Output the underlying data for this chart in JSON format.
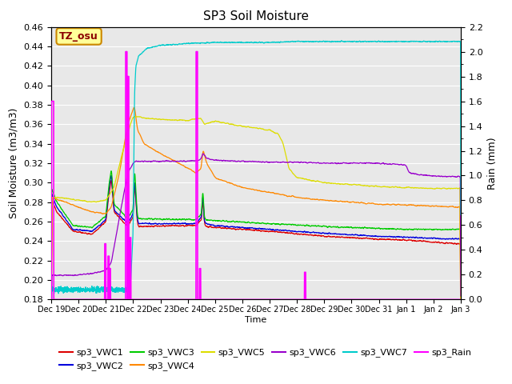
{
  "title": "SP3 Soil Moisture",
  "ylabel_left": "Soil Moisture (m3/m3)",
  "ylabel_right": "Rain (mm)",
  "xlabel": "Time",
  "ylim_left": [
    0.18,
    0.46
  ],
  "ylim_right": [
    0.0,
    2.2
  ],
  "bg_color": "#e8e8e8",
  "colors": {
    "VWC1": "#dd0000",
    "VWC2": "#0000dd",
    "VWC3": "#00cc00",
    "VWC4": "#ff8800",
    "VWC5": "#dddd00",
    "VWC6": "#9900cc",
    "VWC7": "#00cccc",
    "Rain": "#ff00ff"
  },
  "annotation_text": "TZ_osu",
  "annotation_bg": "#ffff99",
  "annotation_border": "#cc8800",
  "x_tick_labels": [
    "Dec 19",
    "Dec 20",
    "Dec 21",
    "Dec 22",
    "Dec 23",
    "Dec 24",
    "Dec 25",
    "Dec 26",
    "Dec 27",
    "Dec 28",
    "Dec 29",
    "Dec 30",
    "Dec 31",
    "Jan 1",
    "Jan 2",
    "Jan 3"
  ],
  "legend_entries": [
    "sp3_VWC1",
    "sp3_VWC2",
    "sp3_VWC3",
    "sp3_VWC4",
    "sp3_VWC5",
    "sp3_VWC6",
    "sp3_VWC7",
    "sp3_Rain"
  ]
}
